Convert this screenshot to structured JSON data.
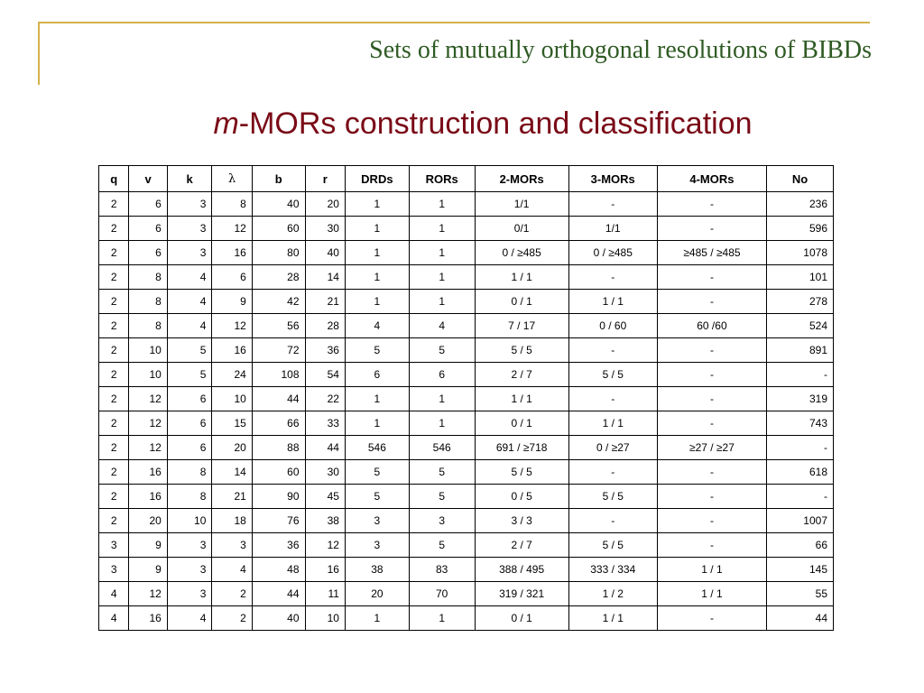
{
  "header": {
    "title": "Sets of mutually orthogonal resolutions of BIBDs"
  },
  "slide": {
    "title_italic": "m",
    "title_rest": "-MORs construction and classification"
  },
  "table": {
    "columns": [
      "q",
      "v",
      "k",
      "λ",
      "b",
      "r",
      "DRDs",
      "RORs",
      "2-MORs",
      "3-MORs",
      "4-MORs",
      "No"
    ],
    "rows": [
      [
        "2",
        "6",
        "3",
        "8",
        "40",
        "20",
        "1",
        "1",
        "1/1",
        "-",
        "-",
        "236"
      ],
      [
        "2",
        "6",
        "3",
        "12",
        "60",
        "30",
        "1",
        "1",
        "0/1",
        "1/1",
        "-",
        "596"
      ],
      [
        "2",
        "6",
        "3",
        "16",
        "80",
        "40",
        "1",
        "1",
        "0 / ≥485",
        "0 / ≥485",
        "≥485 / ≥485",
        "1078"
      ],
      [
        "2",
        "8",
        "4",
        "6",
        "28",
        "14",
        "1",
        "1",
        "1 / 1",
        "-",
        "-",
        "101"
      ],
      [
        "2",
        "8",
        "4",
        "9",
        "42",
        "21",
        "1",
        "1",
        "0 / 1",
        "1 / 1",
        "-",
        "278"
      ],
      [
        "2",
        "8",
        "4",
        "12",
        "56",
        "28",
        "4",
        "4",
        "7 / 17",
        "0 / 60",
        "60 /60",
        "524"
      ],
      [
        "2",
        "10",
        "5",
        "16",
        "72",
        "36",
        "5",
        "5",
        "5 / 5",
        "-",
        "-",
        "891"
      ],
      [
        "2",
        "10",
        "5",
        "24",
        "108",
        "54",
        "6",
        "6",
        "2 / 7",
        "5 / 5",
        "-",
        "-"
      ],
      [
        "2",
        "12",
        "6",
        "10",
        "44",
        "22",
        "1",
        "1",
        "1 / 1",
        "-",
        "-",
        "319"
      ],
      [
        "2",
        "12",
        "6",
        "15",
        "66",
        "33",
        "1",
        "1",
        "0 / 1",
        "1 / 1",
        "-",
        "743"
      ],
      [
        "2",
        "12",
        "6",
        "20",
        "88",
        "44",
        "546",
        "546",
        "691 / ≥718",
        "0 / ≥27",
        "≥27 / ≥27",
        "-"
      ],
      [
        "2",
        "16",
        "8",
        "14",
        "60",
        "30",
        "5",
        "5",
        "5 / 5",
        "-",
        "-",
        "618"
      ],
      [
        "2",
        "16",
        "8",
        "21",
        "90",
        "45",
        "5",
        "5",
        "0 / 5",
        "5 / 5",
        "-",
        "-"
      ],
      [
        "2",
        "20",
        "10",
        "18",
        "76",
        "38",
        "3",
        "3",
        "3 / 3",
        "-",
        "-",
        "1007"
      ],
      [
        "3",
        "9",
        "3",
        "3",
        "36",
        "12",
        "3",
        "5",
        "2 / 7",
        "5 / 5",
        "-",
        "66"
      ],
      [
        "3",
        "9",
        "3",
        "4",
        "48",
        "16",
        "38",
        "83",
        "388 / 495",
        "333 / 334",
        "1 / 1",
        "145"
      ],
      [
        "4",
        "12",
        "3",
        "2",
        "44",
        "11",
        "20",
        "70",
        "319 / 321",
        "1 / 2",
        "1 / 1",
        "55"
      ],
      [
        "4",
        "16",
        "4",
        "2",
        "40",
        "10",
        "1",
        "1",
        "0 / 1",
        "1 / 1",
        "-",
        "44"
      ]
    ]
  }
}
